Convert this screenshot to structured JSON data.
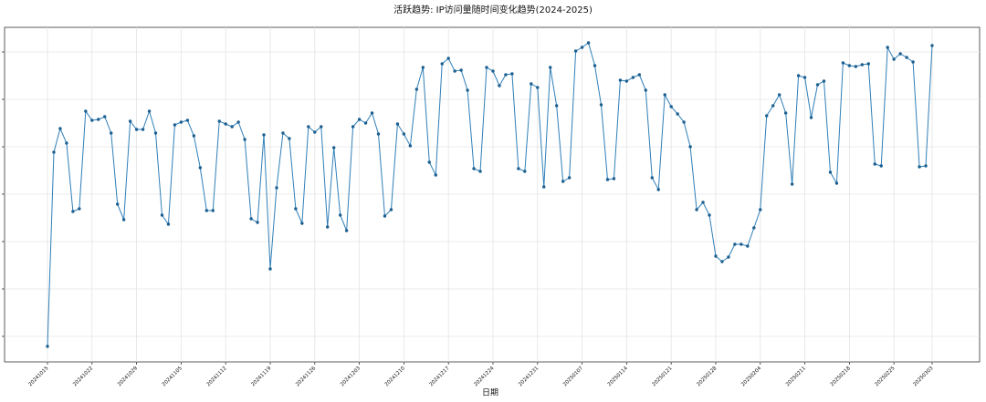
{
  "chart_data": {
    "type": "line",
    "title": "活跃趋势: IP访问量随时间变化趋势(2024-2025)",
    "x_label": "日期",
    "categories": [
      "20241015",
      null,
      null,
      null,
      null,
      null,
      null,
      "20241022",
      null,
      null,
      null,
      null,
      null,
      null,
      "20241029",
      null,
      null,
      null,
      null,
      null,
      null,
      "20241105",
      null,
      null,
      null,
      null,
      null,
      null,
      "20241112",
      null,
      null,
      null,
      null,
      null,
      null,
      "20241119",
      null,
      null,
      null,
      null,
      null,
      null,
      "20241126",
      null,
      null,
      null,
      null,
      null,
      null,
      "20241203",
      null,
      null,
      null,
      null,
      null,
      null,
      "20241210",
      null,
      null,
      null,
      null,
      null,
      null,
      "20241217",
      null,
      null,
      null,
      null,
      null,
      null,
      "20241224",
      null,
      null,
      null,
      null,
      null,
      null,
      "20241231",
      null,
      null,
      null,
      null,
      null,
      null,
      "20250107",
      null,
      null,
      null,
      null,
      null,
      null,
      "20250114",
      null,
      null,
      null,
      null,
      null,
      null,
      "20250121",
      null,
      null,
      null,
      null,
      null,
      null,
      "20250128",
      null,
      null,
      null,
      null,
      null,
      null,
      "20250204",
      null,
      null,
      null,
      null,
      null,
      null,
      "20250211",
      null,
      null,
      null,
      null,
      null,
      null,
      "20250218",
      null,
      null,
      null,
      null,
      null,
      null,
      "20250225",
      null,
      null,
      null,
      null,
      null,
      "20250303"
    ],
    "values": [
      -11,
      202,
      228,
      212,
      137,
      140,
      247,
      237,
      238,
      241,
      223,
      145,
      128,
      236,
      227,
      227,
      247,
      223,
      133,
      123,
      232,
      235,
      237,
      220,
      185,
      138,
      138,
      236,
      233,
      230,
      235,
      216,
      129,
      125,
      221,
      74,
      163,
      223,
      217,
      140,
      124,
      230,
      224,
      230,
      120,
      207,
      133,
      116,
      230,
      238,
      234,
      245,
      222,
      132,
      139,
      233,
      222,
      209,
      271,
      295,
      191,
      177,
      299,
      305,
      291,
      292,
      270,
      184,
      181,
      295,
      291,
      275,
      287,
      288,
      184,
      181,
      277,
      273,
      164,
      295,
      253,
      170,
      174,
      313,
      317,
      322,
      297,
      254,
      172,
      173,
      281,
      280,
      284,
      287,
      270,
      174,
      161,
      265,
      252,
      244,
      235,
      208,
      139,
      147,
      133,
      88,
      82,
      87,
      101,
      101,
      99,
      119,
      139,
      242,
      253,
      265,
      245,
      167,
      286,
      284,
      240,
      276,
      280,
      180,
      168,
      300,
      297,
      296,
      298,
      299,
      189,
      187,
      317,
      304,
      310,
      306,
      301,
      186,
      187,
      319
    ],
    "color": "#2f7fb8",
    "ylim": [
      -28,
      339
    ],
    "ygrid": [
      0,
      52,
      104,
      156,
      208,
      260,
      312
    ],
    "grid": true
  }
}
